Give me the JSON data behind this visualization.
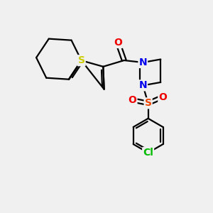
{
  "background_color": "#f0f0f0",
  "bond_color": "#000000",
  "bond_width": 1.6,
  "atom_colors": {
    "S_thio": "#cccc00",
    "N": "#0000ee",
    "O": "#ee0000",
    "Cl": "#00bb00",
    "S_sulfonyl": "#ee4400",
    "C": "#000000"
  },
  "figsize": [
    3.0,
    3.0
  ],
  "dpi": 100,
  "xlim": [
    0,
    10
  ],
  "ylim": [
    0,
    10
  ]
}
